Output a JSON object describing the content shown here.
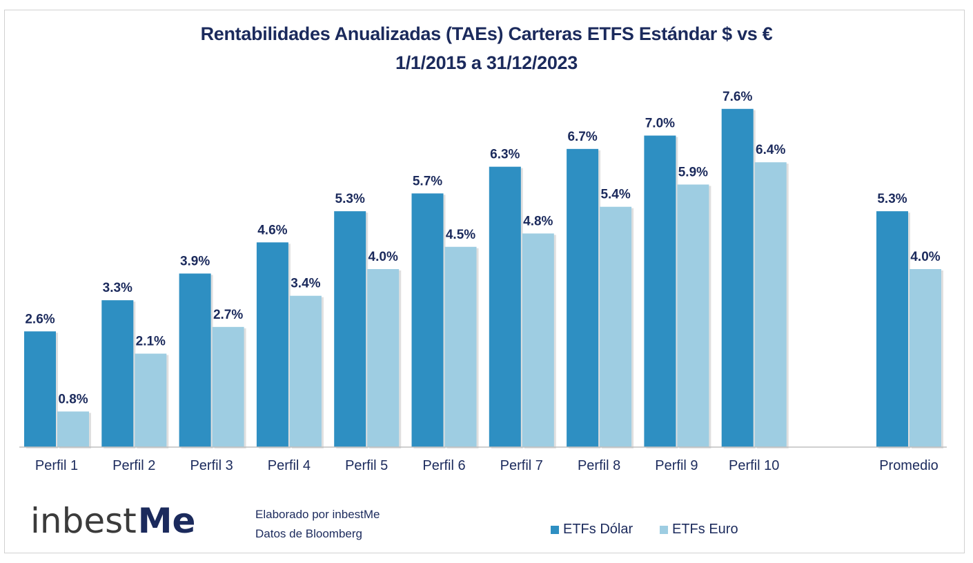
{
  "chart_data": {
    "type": "bar",
    "title": "Rentabilidades Anualizadas (TAEs) Carteras ETFS Estándar $ vs €",
    "subtitle": "1/1/2015 a 31/12/2023",
    "categories": [
      "Perfil 1",
      "Perfil 2",
      "Perfil 3",
      "Perfil 4",
      "Perfil 5",
      "Perfil 6",
      "Perfil 7",
      "Perfil 8",
      "Perfil 9",
      "Perfil 10",
      "Promedio"
    ],
    "series": [
      {
        "name": "ETFs Dólar",
        "values": [
          2.6,
          3.3,
          3.9,
          4.6,
          5.3,
          5.7,
          6.3,
          6.7,
          7.0,
          7.6,
          5.3
        ],
        "labels": [
          "2.6%",
          "3.3%",
          "3.9%",
          "4.6%",
          "5.3%",
          "5.7%",
          "6.3%",
          "6.7%",
          "7.0%",
          "7.6%",
          "5.3%"
        ],
        "color": "#2e8fc2"
      },
      {
        "name": "ETFs Euro",
        "values": [
          0.8,
          2.1,
          2.7,
          3.4,
          4.0,
          4.5,
          4.8,
          5.4,
          5.9,
          6.4,
          4.0
        ],
        "labels": [
          "0.8%",
          "2.1%",
          "2.7%",
          "3.4%",
          "4.0%",
          "4.5%",
          "4.8%",
          "5.4%",
          "5.9%",
          "6.4%",
          "4.0%"
        ],
        "color": "#9ecde2"
      }
    ],
    "ylim": [
      0,
      8
    ],
    "xlabel": "",
    "ylabel": "",
    "grid": false,
    "legend_position": "bottom-right",
    "label_color": "#1b2a5c"
  },
  "footer": {
    "credit_line1": "Elaborado por inbestMe",
    "credit_line2": "Datos de Bloomberg"
  },
  "logo": {
    "text_main": "inbest",
    "text_accent": "Me"
  }
}
